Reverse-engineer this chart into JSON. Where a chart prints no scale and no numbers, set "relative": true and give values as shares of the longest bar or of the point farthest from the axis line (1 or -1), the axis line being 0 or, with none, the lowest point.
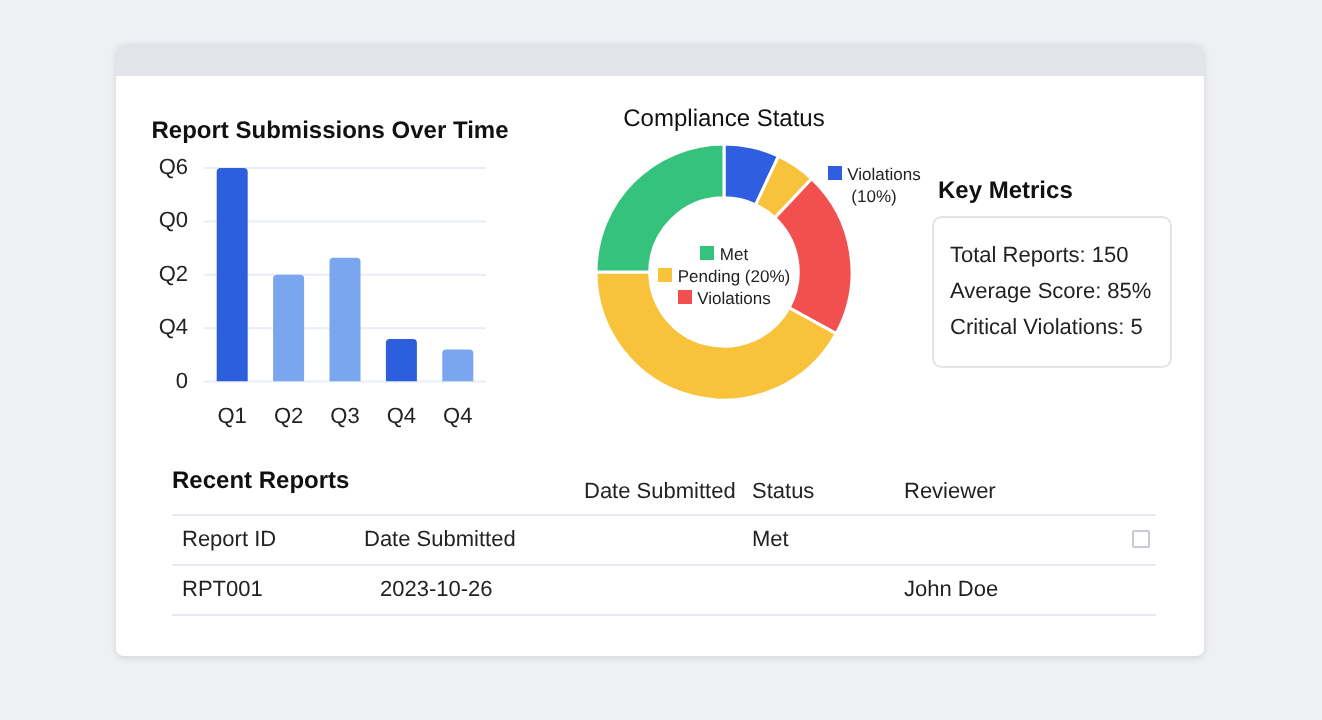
{
  "chart_data": [
    {
      "type": "bar",
      "title": "Report Submissions Over Time",
      "categories": [
        "Q1",
        "Q2",
        "Q3",
        "Q4",
        "Q4"
      ],
      "values": [
        1,
        0.5,
        0.58,
        0.2,
        0.15
      ],
      "colors": [
        "#2d5fdc",
        "#7aa6f0",
        "#7aa6f0",
        "#2d5fdc",
        "#7aa6f0"
      ],
      "relative": true,
      "annotations": [
        "Q6",
        "Q0",
        "Q2",
        "Q4",
        "0"
      ],
      "grid": "y",
      "legend": false
    },
    {
      "type": "donut",
      "title": "Compliance Status",
      "categories": [
        "Violations (10%)",
        null,
        "Violations",
        "Pending (20%)",
        "Met"
      ],
      "values": [
        7,
        5,
        21,
        42,
        25
      ],
      "colors": [
        "#2f5fe0",
        "#f8c23a",
        "#f1504f",
        "#f8c23a",
        "#35c27c"
      ],
      "legend": "center"
    },
    {
      "type": "other",
      "title": "Key Metrics",
      "annotations": [
        "Total Reports: 150",
        "Average Score: 85%",
        "Critical Violations: 5"
      ]
    },
    {
      "type": "other",
      "title": "Recent Reports",
      "annotations": [
        "Date Submitted",
        "Status",
        "Reviewer",
        "Report ID",
        "Date Submitted",
        "Met",
        "RPT001",
        "2023-10-26",
        "John Doe"
      ]
    }
  ]
}
